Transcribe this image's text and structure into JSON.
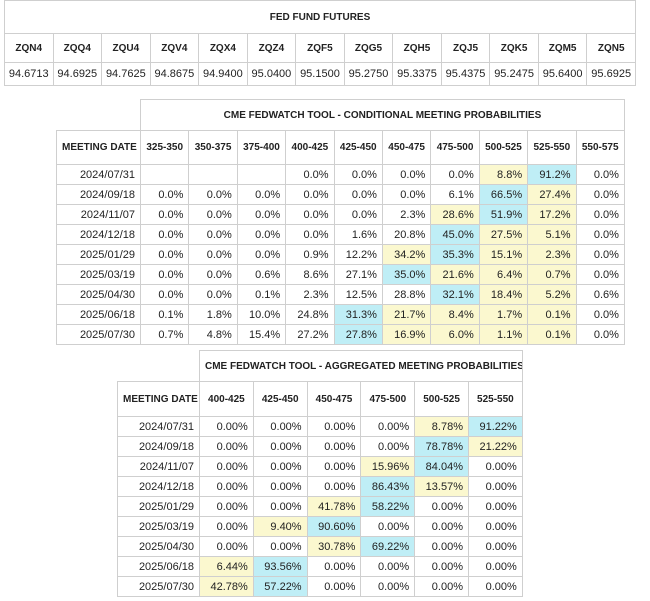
{
  "futures": {
    "title": "FED FUND FUTURES",
    "contracts": [
      "ZQN4",
      "ZQQ4",
      "ZQU4",
      "ZQV4",
      "ZQX4",
      "ZQZ4",
      "ZQF5",
      "ZQG5",
      "ZQH5",
      "ZQJ5",
      "ZQK5",
      "ZQM5",
      "ZQN5"
    ],
    "prices": [
      "94.6713",
      "94.6925",
      "94.7625",
      "94.8675",
      "94.9400",
      "95.0400",
      "95.1500",
      "95.2750",
      "95.3375",
      "95.4375",
      "95.2475",
      "95.6400",
      "95.6925"
    ]
  },
  "conditional": {
    "title": "CME FEDWATCH TOOL - CONDITIONAL MEETING PROBABILITIES",
    "date_header": "MEETING DATE",
    "columns": [
      "325-350",
      "350-375",
      "375-400",
      "400-425",
      "425-450",
      "450-475",
      "475-500",
      "500-525",
      "525-550",
      "550-575"
    ],
    "rows": [
      {
        "date": "2024/07/31",
        "values": [
          "",
          "",
          "",
          "0.0%",
          "0.0%",
          "0.0%",
          "0.0%",
          "8.8%",
          "91.2%",
          "0.0%"
        ],
        "hl": [
          "",
          "",
          "",
          "",
          "",
          "",
          "",
          "y",
          "b",
          ""
        ]
      },
      {
        "date": "2024/09/18",
        "values": [
          "0.0%",
          "0.0%",
          "0.0%",
          "0.0%",
          "0.0%",
          "0.0%",
          "6.1%",
          "66.5%",
          "27.4%",
          "0.0%"
        ],
        "hl": [
          "",
          "",
          "",
          "",
          "",
          "",
          "",
          "b",
          "y",
          ""
        ]
      },
      {
        "date": "2024/11/07",
        "values": [
          "0.0%",
          "0.0%",
          "0.0%",
          "0.0%",
          "0.0%",
          "2.3%",
          "28.6%",
          "51.9%",
          "17.2%",
          "0.0%"
        ],
        "hl": [
          "",
          "",
          "",
          "",
          "",
          "",
          "y",
          "b",
          "y",
          ""
        ]
      },
      {
        "date": "2024/12/18",
        "values": [
          "0.0%",
          "0.0%",
          "0.0%",
          "0.0%",
          "1.6%",
          "20.8%",
          "45.0%",
          "27.5%",
          "5.1%",
          "0.0%"
        ],
        "hl": [
          "",
          "",
          "",
          "",
          "",
          "",
          "b",
          "y",
          "y",
          ""
        ]
      },
      {
        "date": "2025/01/29",
        "values": [
          "0.0%",
          "0.0%",
          "0.0%",
          "0.9%",
          "12.2%",
          "34.2%",
          "35.3%",
          "15.1%",
          "2.3%",
          "0.0%"
        ],
        "hl": [
          "",
          "",
          "",
          "",
          "",
          "y",
          "b",
          "y",
          "y",
          ""
        ]
      },
      {
        "date": "2025/03/19",
        "values": [
          "0.0%",
          "0.0%",
          "0.6%",
          "8.6%",
          "27.1%",
          "35.0%",
          "21.6%",
          "6.4%",
          "0.7%",
          "0.0%"
        ],
        "hl": [
          "",
          "",
          "",
          "",
          "",
          "b",
          "y",
          "y",
          "y",
          ""
        ]
      },
      {
        "date": "2025/04/30",
        "values": [
          "0.0%",
          "0.0%",
          "0.1%",
          "2.3%",
          "12.5%",
          "28.8%",
          "32.1%",
          "18.4%",
          "5.2%",
          "0.6%"
        ],
        "hl": [
          "",
          "",
          "",
          "",
          "",
          "",
          "b",
          "y",
          "y",
          ""
        ]
      },
      {
        "date": "2025/06/18",
        "values": [
          "0.1%",
          "1.8%",
          "10.0%",
          "24.8%",
          "31.3%",
          "21.7%",
          "8.4%",
          "1.7%",
          "0.1%",
          "0.0%"
        ],
        "hl": [
          "",
          "",
          "",
          "",
          "b",
          "y",
          "y",
          "y",
          "y",
          ""
        ]
      },
      {
        "date": "2025/07/30",
        "values": [
          "0.7%",
          "4.8%",
          "15.4%",
          "27.2%",
          "27.8%",
          "16.9%",
          "6.0%",
          "1.1%",
          "0.1%",
          "0.0%"
        ],
        "hl": [
          "",
          "",
          "",
          "",
          "b",
          "y",
          "y",
          "y",
          "y",
          ""
        ]
      }
    ]
  },
  "aggregated": {
    "title": "CME FEDWATCH TOOL - AGGREGATED MEETING PROBABILITIES",
    "date_header": "MEETING DATE",
    "columns": [
      "400-425",
      "425-450",
      "450-475",
      "475-500",
      "500-525",
      "525-550"
    ],
    "rows": [
      {
        "date": "2024/07/31",
        "values": [
          "0.00%",
          "0.00%",
          "0.00%",
          "0.00%",
          "8.78%",
          "91.22%"
        ],
        "hl": [
          "",
          "",
          "",
          "",
          "y",
          "b"
        ]
      },
      {
        "date": "2024/09/18",
        "values": [
          "0.00%",
          "0.00%",
          "0.00%",
          "0.00%",
          "78.78%",
          "21.22%"
        ],
        "hl": [
          "",
          "",
          "",
          "",
          "b",
          "y"
        ]
      },
      {
        "date": "2024/11/07",
        "values": [
          "0.00%",
          "0.00%",
          "0.00%",
          "15.96%",
          "84.04%",
          "0.00%"
        ],
        "hl": [
          "",
          "",
          "",
          "y",
          "b",
          ""
        ]
      },
      {
        "date": "2024/12/18",
        "values": [
          "0.00%",
          "0.00%",
          "0.00%",
          "86.43%",
          "13.57%",
          "0.00%"
        ],
        "hl": [
          "",
          "",
          "",
          "b",
          "y",
          ""
        ]
      },
      {
        "date": "2025/01/29",
        "values": [
          "0.00%",
          "0.00%",
          "41.78%",
          "58.22%",
          "0.00%",
          "0.00%"
        ],
        "hl": [
          "",
          "",
          "y",
          "b",
          "",
          ""
        ]
      },
      {
        "date": "2025/03/19",
        "values": [
          "0.00%",
          "9.40%",
          "90.60%",
          "0.00%",
          "0.00%",
          "0.00%"
        ],
        "hl": [
          "",
          "y",
          "b",
          "",
          "",
          ""
        ]
      },
      {
        "date": "2025/04/30",
        "values": [
          "0.00%",
          "0.00%",
          "30.78%",
          "69.22%",
          "0.00%",
          "0.00%"
        ],
        "hl": [
          "",
          "",
          "y",
          "b",
          "",
          ""
        ]
      },
      {
        "date": "2025/06/18",
        "values": [
          "6.44%",
          "93.56%",
          "0.00%",
          "0.00%",
          "0.00%",
          "0.00%"
        ],
        "hl": [
          "y",
          "b",
          "",
          "",
          "",
          ""
        ]
      },
      {
        "date": "2025/07/30",
        "values": [
          "42.78%",
          "57.22%",
          "0.00%",
          "0.00%",
          "0.00%",
          "0.00%"
        ],
        "hl": [
          "y",
          "b",
          "",
          "",
          "",
          ""
        ]
      }
    ]
  },
  "colors": {
    "highlight_blue": "#bfeef6",
    "highlight_yellow": "#fbf8cf",
    "border": "#cfcfcf"
  }
}
